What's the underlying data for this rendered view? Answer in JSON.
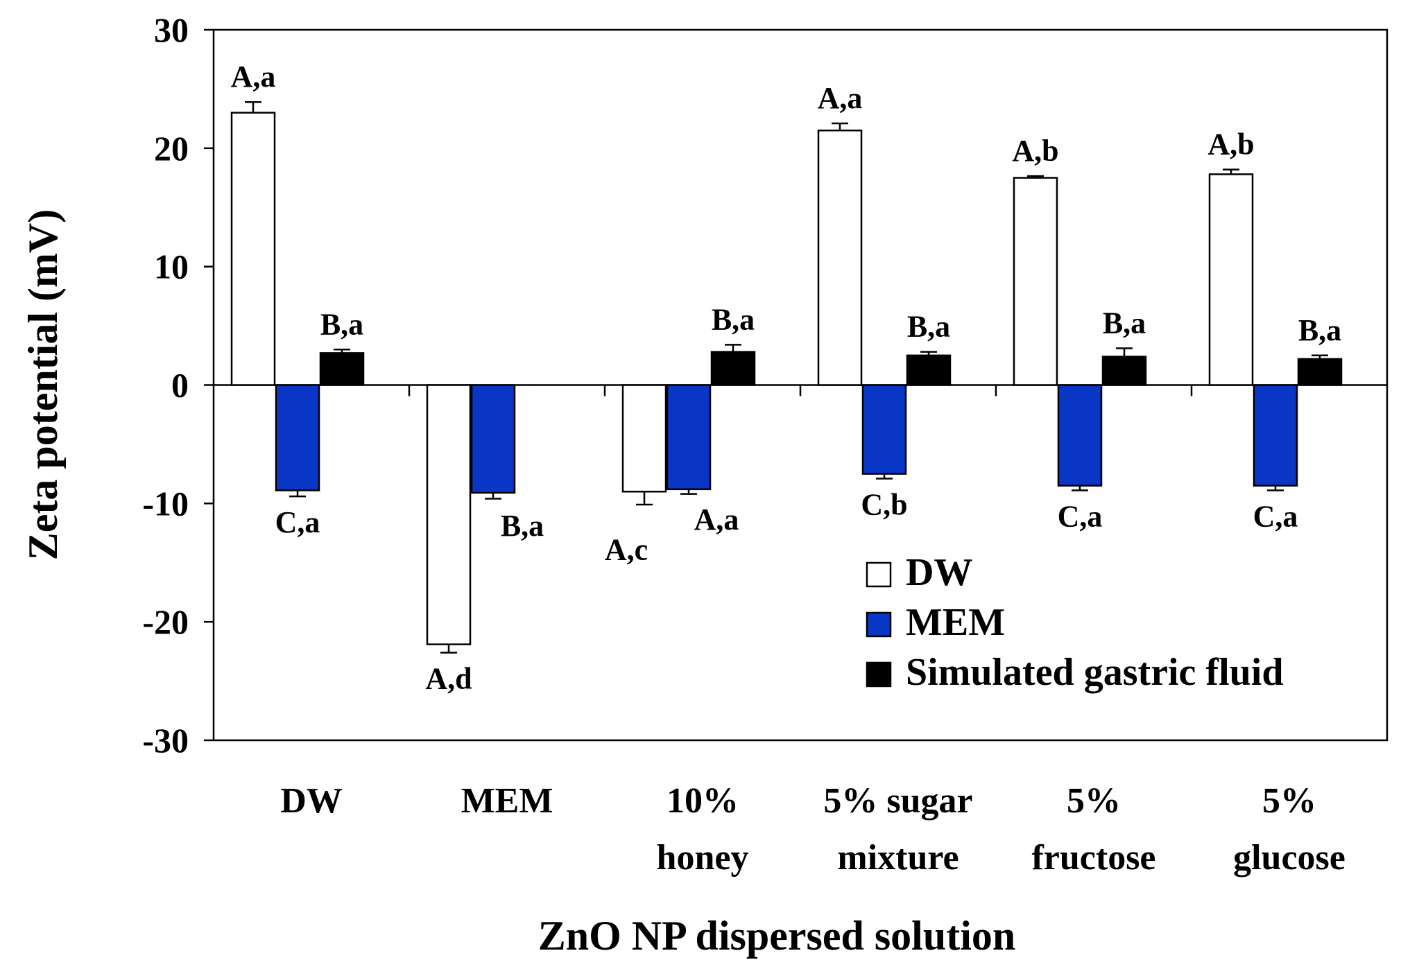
{
  "chart_data": {
    "type": "bar",
    "xlabel": "ZnO NP dispersed solution",
    "ylabel": "Zeta potential (mV)",
    "ylim": [
      -30,
      30
    ],
    "yticks": [
      30,
      20,
      10,
      0,
      -10,
      -20,
      -30
    ],
    "ytick_labels": [
      "30",
      "20",
      "10",
      "0",
      "-10",
      "-20",
      "-30"
    ],
    "categories": [
      [
        "DW"
      ],
      [
        "MEM"
      ],
      [
        "10%",
        "honey"
      ],
      [
        "5% sugar",
        "mixture"
      ],
      [
        "5%",
        "fructose"
      ],
      [
        "5%",
        "glucose"
      ]
    ],
    "series": [
      {
        "name": "DW",
        "color": "#ffffff",
        "values": [
          23.0,
          -21.9,
          -9.0,
          21.5,
          17.5,
          17.8
        ],
        "errors": [
          0.9,
          0.7,
          1.1,
          0.6,
          0.15,
          0.4
        ],
        "labels": [
          "A,a",
          "A,d",
          "A,c",
          "A,a",
          "A,b",
          "A,b"
        ]
      },
      {
        "name": "MEM",
        "color": "#0a36c6",
        "values": [
          -8.9,
          -9.1,
          -8.8,
          -7.5,
          -8.5,
          -8.5
        ],
        "errors": [
          0.5,
          0.5,
          0.4,
          0.4,
          0.4,
          0.4
        ],
        "labels": [
          "C,a",
          "B,a",
          "A,a",
          "C,b",
          "C,a",
          "C,a"
        ]
      },
      {
        "name": "Simulated gastric fluid",
        "color": "#000000",
        "values": [
          2.7,
          null,
          2.8,
          2.5,
          2.4,
          2.2
        ],
        "errors": [
          0.3,
          null,
          0.6,
          0.3,
          0.7,
          0.3
        ],
        "labels": [
          "B,a",
          null,
          "B,a",
          "B,a",
          "B,a",
          "B,a"
        ]
      }
    ],
    "legend": {
      "position": "bottom-right",
      "entries": [
        "DW",
        "MEM",
        "Simulated gastric fluid"
      ]
    },
    "grid": false
  }
}
